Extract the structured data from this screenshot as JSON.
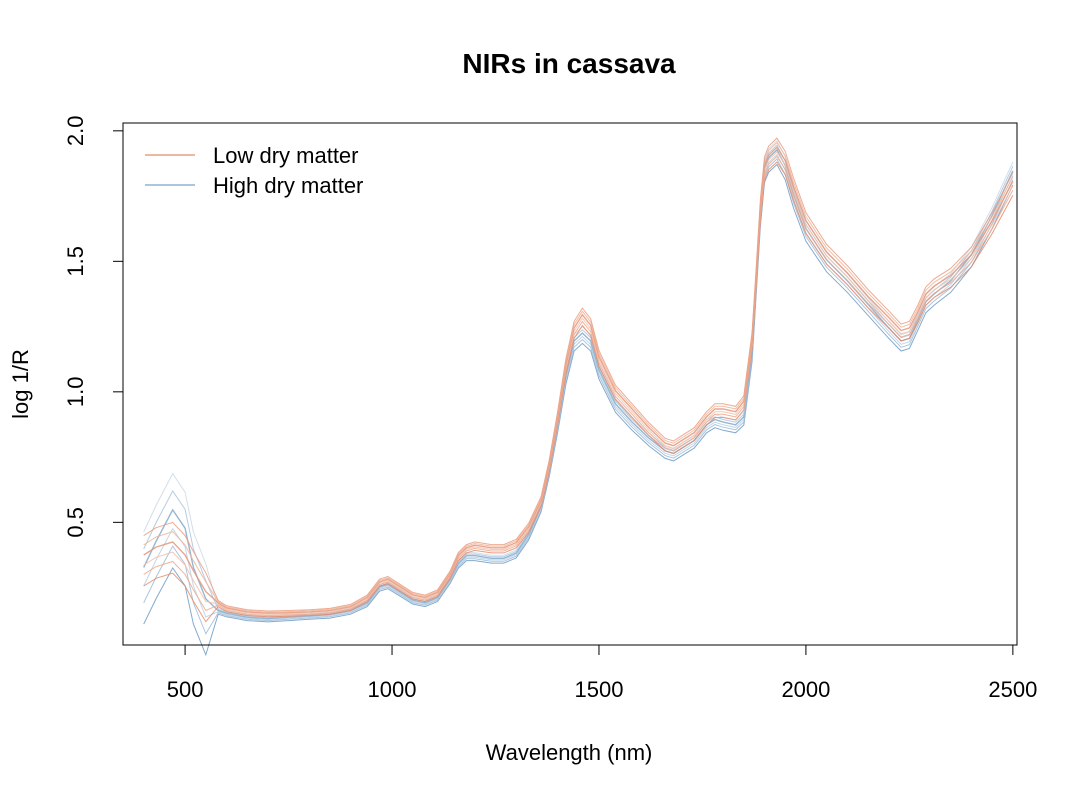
{
  "chart_data": {
    "type": "line",
    "title": "NIRs in cassava",
    "xlabel": "Wavelength (nm)",
    "ylabel": "log 1/R",
    "xlim": [
      350,
      2510
    ],
    "ylim": [
      0.03,
      2.03
    ],
    "x_ticks": [
      500,
      1000,
      1500,
      2000,
      2500
    ],
    "y_ticks": [
      0.5,
      1.0,
      1.5,
      2.0
    ],
    "y_tick_labels": [
      "0.5",
      "1.0",
      "1.5",
      "2.0"
    ],
    "legend_position": "top-left",
    "colors": {
      "low": "#e8a080",
      "high": "#8fb3d3"
    },
    "series": [
      {
        "name": "Low dry matter",
        "x": [
          400,
          430,
          470,
          500,
          520,
          550,
          580,
          600,
          650,
          700,
          750,
          800,
          850,
          900,
          940,
          970,
          990,
          1010,
          1050,
          1080,
          1110,
          1140,
          1160,
          1180,
          1200,
          1240,
          1270,
          1300,
          1330,
          1360,
          1380,
          1400,
          1420,
          1440,
          1460,
          1480,
          1500,
          1540,
          1580,
          1620,
          1660,
          1680,
          1700,
          1730,
          1760,
          1780,
          1800,
          1830,
          1850,
          1870,
          1880,
          1890,
          1900,
          1910,
          1930,
          1950,
          1970,
          2000,
          2050,
          2100,
          2150,
          2200,
          2230,
          2250,
          2270,
          2290,
          2310,
          2350,
          2400,
          2450,
          2500
        ],
        "y": [
          0.36,
          0.39,
          0.41,
          0.36,
          0.3,
          0.22,
          0.19,
          0.17,
          0.155,
          0.15,
          0.152,
          0.155,
          0.16,
          0.175,
          0.21,
          0.27,
          0.28,
          0.26,
          0.22,
          0.21,
          0.23,
          0.3,
          0.37,
          0.4,
          0.41,
          0.4,
          0.4,
          0.42,
          0.48,
          0.58,
          0.72,
          0.9,
          1.1,
          1.24,
          1.29,
          1.25,
          1.13,
          1.0,
          0.93,
          0.86,
          0.8,
          0.79,
          0.81,
          0.84,
          0.9,
          0.93,
          0.93,
          0.92,
          0.96,
          1.2,
          1.45,
          1.7,
          1.86,
          1.9,
          1.93,
          1.88,
          1.78,
          1.65,
          1.53,
          1.45,
          1.36,
          1.28,
          1.23,
          1.24,
          1.3,
          1.37,
          1.4,
          1.44,
          1.52,
          1.65,
          1.8
        ]
      },
      {
        "name": "High dry matter",
        "x": [
          400,
          430,
          470,
          500,
          520,
          550,
          580,
          600,
          650,
          700,
          750,
          800,
          850,
          900,
          940,
          970,
          990,
          1010,
          1050,
          1080,
          1110,
          1140,
          1160,
          1180,
          1200,
          1240,
          1270,
          1300,
          1330,
          1360,
          1380,
          1400,
          1420,
          1440,
          1460,
          1480,
          1500,
          1540,
          1580,
          1620,
          1660,
          1680,
          1700,
          1730,
          1760,
          1780,
          1800,
          1830,
          1850,
          1870,
          1880,
          1890,
          1900,
          1910,
          1930,
          1950,
          1970,
          2000,
          2050,
          2100,
          2150,
          2200,
          2230,
          2250,
          2270,
          2290,
          2310,
          2350,
          2400,
          2450,
          2500
        ],
        "y": [
          0.3,
          0.4,
          0.52,
          0.45,
          0.3,
          0.18,
          0.16,
          0.15,
          0.135,
          0.13,
          0.135,
          0.14,
          0.145,
          0.16,
          0.19,
          0.25,
          0.26,
          0.24,
          0.2,
          0.19,
          0.21,
          0.28,
          0.34,
          0.37,
          0.37,
          0.36,
          0.36,
          0.38,
          0.45,
          0.56,
          0.7,
          0.87,
          1.06,
          1.19,
          1.22,
          1.19,
          1.08,
          0.95,
          0.88,
          0.82,
          0.77,
          0.76,
          0.78,
          0.81,
          0.87,
          0.89,
          0.88,
          0.87,
          0.9,
          1.15,
          1.42,
          1.68,
          1.85,
          1.89,
          1.92,
          1.86,
          1.75,
          1.62,
          1.5,
          1.42,
          1.33,
          1.24,
          1.19,
          1.2,
          1.27,
          1.34,
          1.37,
          1.42,
          1.52,
          1.67,
          1.84
        ]
      }
    ]
  }
}
